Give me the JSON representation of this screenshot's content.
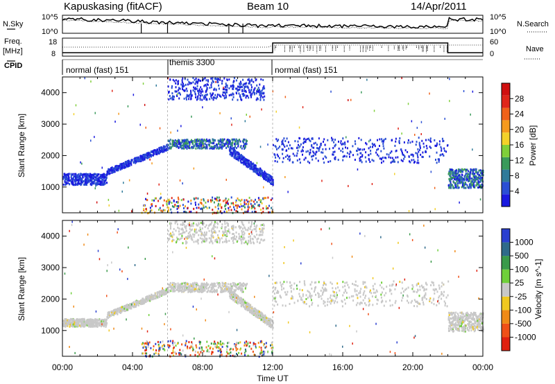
{
  "header": {
    "station": "Kapuskasing (fitACF)",
    "beam": "Beam 10",
    "date": "14/Apr/2011"
  },
  "left_labels": {
    "nsky": "N.Sky",
    "freq": "Freq.",
    "mhz": "[MHz]",
    "cpid": "CPID"
  },
  "right_labels": {
    "nsearch": "N.Search",
    "nave": "Nave"
  },
  "noise_axis": {
    "top": "10^5",
    "bottom": "10^0",
    "top_right": "10^5",
    "bottom_right": "10^0"
  },
  "freq_axis": {
    "left_ticks": [
      "18",
      "8"
    ],
    "right_ticks": [
      "60",
      "0"
    ]
  },
  "cpid_segments": [
    {
      "label": "normal (fast) 151",
      "start_h": 0,
      "end_h": 6
    },
    {
      "label": "themis 3300",
      "start_h": 6,
      "end_h": 12
    },
    {
      "label": "normal (fast) 151",
      "start_h": 12,
      "end_h": 24
    }
  ],
  "x_axis": {
    "label": "Time UT",
    "ticks": [
      "00:00",
      "04:00",
      "08:00",
      "12:00",
      "16:00",
      "20:00",
      "00:00"
    ],
    "range_hours": [
      0,
      24
    ]
  },
  "y_axis": {
    "label": "Slant Range [km]",
    "ticks": [
      "1000",
      "2000",
      "3000",
      "4000"
    ],
    "range_km": [
      180,
      4500
    ]
  },
  "power_colorbar": {
    "label": "Power [dB]",
    "ticks": [
      "4",
      "8",
      "12",
      "16",
      "20",
      "24",
      "28"
    ],
    "colors": [
      "#1a1adf",
      "#2a4fd4",
      "#2f7a9a",
      "#3a9a5a",
      "#7fcf3a",
      "#f3d12a",
      "#f59a1e",
      "#f0621a",
      "#e0261a",
      "#d01010"
    ]
  },
  "velocity_colorbar": {
    "label": "Velocity [m s^-1]",
    "ticks": [
      "1000",
      "500",
      "100",
      "25",
      "-25",
      "-100",
      "-500",
      "-1000"
    ],
    "colors": [
      "#2a3fd0",
      "#2f6a8a",
      "#3a9a4a",
      "#6fcf3a",
      "#c8c8c8",
      "#f0c820",
      "#f08a18",
      "#f05018",
      "#e02010"
    ]
  },
  "chart_data": {
    "type": "heatmap",
    "title": "Kapuskasing (fitACF)",
    "panels": [
      {
        "name": "Power",
        "colorbar_label": "Power [dB]",
        "scatter_bands": [
          {
            "t0": 0.0,
            "t1": 2.5,
            "r0": 1100,
            "r1": 1450,
            "value": "blue"
          },
          {
            "t0": 2.5,
            "t1": 6.0,
            "r0": 1500,
            "r1": 2300,
            "value": "blue"
          },
          {
            "t0": 6.0,
            "t1": 10.5,
            "r0": 2250,
            "r1": 2550,
            "value": "blue-green"
          },
          {
            "t0": 9.5,
            "t1": 12.0,
            "r0": 1200,
            "r1": 2200,
            "value": "blue"
          },
          {
            "t0": 6.0,
            "t1": 11.5,
            "r0": 3800,
            "r1": 4500,
            "value": "blue"
          },
          {
            "t0": 12.0,
            "t1": 22.0,
            "r0": 1800,
            "r1": 2600,
            "value": "blue"
          },
          {
            "t0": 22.0,
            "t1": 24.0,
            "r0": 1000,
            "r1": 1600,
            "value": "blue-green"
          },
          {
            "t0": 4.5,
            "t1": 12.0,
            "r0": 200,
            "r1": 700,
            "value": "mixed"
          }
        ]
      },
      {
        "name": "Velocity",
        "colorbar_label": "Velocity [m s^-1]",
        "scatter_bands": [
          {
            "t0": 0.0,
            "t1": 2.5,
            "r0": 1150,
            "r1": 1400,
            "value": "grey"
          },
          {
            "t0": 2.5,
            "t1": 6.0,
            "r0": 1500,
            "r1": 2300,
            "value": "grey"
          },
          {
            "t0": 6.0,
            "t1": 10.5,
            "r0": 2250,
            "r1": 2550,
            "value": "grey"
          },
          {
            "t0": 9.5,
            "t1": 12.0,
            "r0": 1200,
            "r1": 2200,
            "value": "grey"
          },
          {
            "t0": 6.0,
            "t1": 11.5,
            "r0": 3800,
            "r1": 4500,
            "value": "grey"
          },
          {
            "t0": 12.0,
            "t1": 22.0,
            "r0": 1800,
            "r1": 2600,
            "value": "grey"
          },
          {
            "t0": 22.0,
            "t1": 24.0,
            "r0": 1000,
            "r1": 1600,
            "value": "grey"
          },
          {
            "t0": 4.5,
            "t1": 12.0,
            "r0": 200,
            "r1": 700,
            "value": "mixed"
          }
        ]
      }
    ],
    "xlabel": "Time UT",
    "ylabel": "Slant Range [km]",
    "xlim_hours": [
      0,
      24
    ],
    "ylim_km": [
      180,
      4500
    ]
  }
}
